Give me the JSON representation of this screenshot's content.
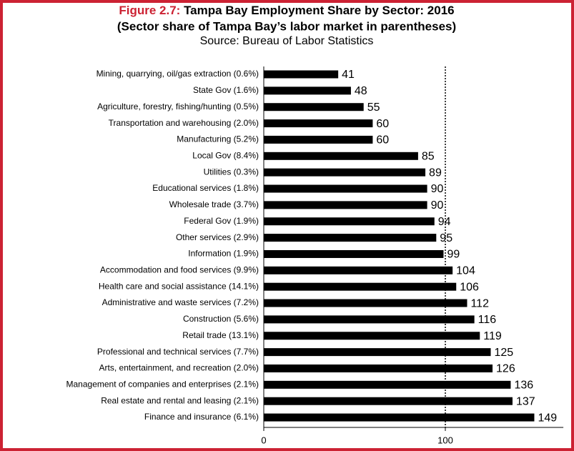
{
  "chart_data": {
    "type": "barh",
    "title_label": "Figure 2.7:",
    "title": "Tampa Bay Employment Share by Sector: 2016",
    "title_line2": "(Sector share of Tampa Bay’s labor market in parentheses)",
    "subtitle": "Source: Bureau of Labor Statistics",
    "categories": [
      "Mining, quarrying, oil/gas extraction (0.6%)",
      "State Gov (1.6%)",
      "Agriculture, forestry, fishing/hunting (0.5%)",
      "Transportation and warehousing (2.0%)",
      "Manufacturing (5.2%)",
      "Local Gov (8.4%)",
      "Utilities (0.3%)",
      "Educational services (1.8%)",
      "Wholesale trade (3.7%)",
      "Federal Gov (1.9%)",
      "Other services (2.9%)",
      "Information (1.9%)",
      "Accommodation and food services (9.9%)",
      "Health care and social assistance (14.1%)",
      "Administrative and waste services (7.2%)",
      "Construction (5.6%)",
      "Retail trade (13.1%)",
      "Professional and technical services (7.7%)",
      "Arts, entertainment, and recreation (2.0%)",
      "Management of companies and enterprises (2.1%)",
      "Real estate and rental and leasing (2.1%)",
      "Finance and insurance (6.1%)"
    ],
    "values": [
      41,
      48,
      55,
      60,
      60,
      85,
      89,
      90,
      90,
      94,
      95,
      99,
      104,
      106,
      112,
      116,
      119,
      125,
      126,
      136,
      137,
      149
    ],
    "color": "#000000",
    "title_label_color": "#cc2233",
    "border_color": "#cc2233",
    "xlim": [
      0,
      165
    ],
    "xticks": [
      0,
      100
    ],
    "reference_line": 100
  }
}
